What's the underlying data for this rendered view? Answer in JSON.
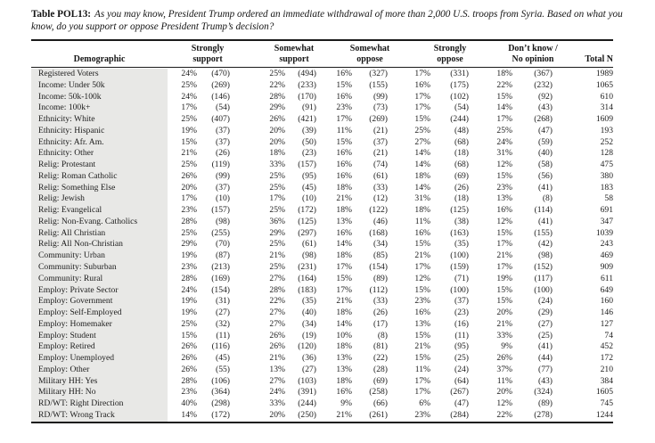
{
  "title": {
    "label": "Table POL13:",
    "line1": "As you may know, President Trump ordered an immediate withdrawal of more than 2,000 U.S. troops from Syria. Based on what you",
    "line2": "know, do you support or oppose President Trump’s decision?"
  },
  "table": {
    "type": "table",
    "demographic_header": "Demographic",
    "total_header": "Total N",
    "groups": [
      {
        "line1": "Strongly",
        "line2": "support"
      },
      {
        "line1": "Somewhat",
        "line2": "support"
      },
      {
        "line1": "Somewhat",
        "line2": "oppose"
      },
      {
        "line1": "Strongly",
        "line2": "oppose"
      },
      {
        "line1": "Don’t know /",
        "line2": "No opinion"
      }
    ],
    "rows": [
      {
        "label": "Registered Voters",
        "values": [
          "24%",
          "(470)",
          "25%",
          "(494)",
          "16%",
          "(327)",
          "17%",
          "(331)",
          "18%",
          "(367)",
          "1989"
        ]
      },
      {
        "label": "Income: Under 50k",
        "values": [
          "25%",
          "(269)",
          "22%",
          "(233)",
          "15%",
          "(155)",
          "16%",
          "(175)",
          "22%",
          "(232)",
          "1065"
        ]
      },
      {
        "label": "Income: 50k-100k",
        "values": [
          "24%",
          "(146)",
          "28%",
          "(170)",
          "16%",
          "(99)",
          "17%",
          "(102)",
          "15%",
          "(92)",
          "610"
        ]
      },
      {
        "label": "Income: 100k+",
        "values": [
          "17%",
          "(54)",
          "29%",
          "(91)",
          "23%",
          "(73)",
          "17%",
          "(54)",
          "14%",
          "(43)",
          "314"
        ]
      },
      {
        "label": "Ethnicity: White",
        "values": [
          "25%",
          "(407)",
          "26%",
          "(421)",
          "17%",
          "(269)",
          "15%",
          "(244)",
          "17%",
          "(268)",
          "1609"
        ]
      },
      {
        "label": "Ethnicity: Hispanic",
        "values": [
          "19%",
          "(37)",
          "20%",
          "(39)",
          "11%",
          "(21)",
          "25%",
          "(48)",
          "25%",
          "(47)",
          "193"
        ]
      },
      {
        "label": "Ethnicity: Afr. Am.",
        "values": [
          "15%",
          "(37)",
          "20%",
          "(50)",
          "15%",
          "(37)",
          "27%",
          "(68)",
          "24%",
          "(59)",
          "252"
        ]
      },
      {
        "label": "Ethnicity: Other",
        "values": [
          "21%",
          "(26)",
          "18%",
          "(23)",
          "16%",
          "(21)",
          "14%",
          "(18)",
          "31%",
          "(40)",
          "128"
        ]
      },
      {
        "label": "Relig: Protestant",
        "values": [
          "25%",
          "(119)",
          "33%",
          "(157)",
          "16%",
          "(74)",
          "14%",
          "(68)",
          "12%",
          "(58)",
          "475"
        ]
      },
      {
        "label": "Relig: Roman Catholic",
        "values": [
          "26%",
          "(99)",
          "25%",
          "(95)",
          "16%",
          "(61)",
          "18%",
          "(69)",
          "15%",
          "(56)",
          "380"
        ]
      },
      {
        "label": "Relig: Something Else",
        "values": [
          "20%",
          "(37)",
          "25%",
          "(45)",
          "18%",
          "(33)",
          "14%",
          "(26)",
          "23%",
          "(41)",
          "183"
        ]
      },
      {
        "label": "Relig: Jewish",
        "values": [
          "17%",
          "(10)",
          "17%",
          "(10)",
          "21%",
          "(12)",
          "31%",
          "(18)",
          "13%",
          "(8)",
          "58"
        ]
      },
      {
        "label": "Relig: Evangelical",
        "values": [
          "23%",
          "(157)",
          "25%",
          "(172)",
          "18%",
          "(122)",
          "18%",
          "(125)",
          "16%",
          "(114)",
          "691"
        ]
      },
      {
        "label": "Relig: Non-Evang. Catholics",
        "values": [
          "28%",
          "(98)",
          "36%",
          "(125)",
          "13%",
          "(46)",
          "11%",
          "(38)",
          "12%",
          "(41)",
          "347"
        ]
      },
      {
        "label": "Relig: All Christian",
        "values": [
          "25%",
          "(255)",
          "29%",
          "(297)",
          "16%",
          "(168)",
          "16%",
          "(163)",
          "15%",
          "(155)",
          "1039"
        ]
      },
      {
        "label": "Relig: All Non-Christian",
        "values": [
          "29%",
          "(70)",
          "25%",
          "(61)",
          "14%",
          "(34)",
          "15%",
          "(35)",
          "17%",
          "(42)",
          "243"
        ]
      },
      {
        "label": "Community: Urban",
        "values": [
          "19%",
          "(87)",
          "21%",
          "(98)",
          "18%",
          "(85)",
          "21%",
          "(100)",
          "21%",
          "(98)",
          "469"
        ]
      },
      {
        "label": "Community: Suburban",
        "values": [
          "23%",
          "(213)",
          "25%",
          "(231)",
          "17%",
          "(154)",
          "17%",
          "(159)",
          "17%",
          "(152)",
          "909"
        ]
      },
      {
        "label": "Community: Rural",
        "values": [
          "28%",
          "(169)",
          "27%",
          "(164)",
          "15%",
          "(89)",
          "12%",
          "(71)",
          "19%",
          "(117)",
          "611"
        ]
      },
      {
        "label": "Employ: Private Sector",
        "values": [
          "24%",
          "(154)",
          "28%",
          "(183)",
          "17%",
          "(112)",
          "15%",
          "(100)",
          "15%",
          "(100)",
          "649"
        ]
      },
      {
        "label": "Employ: Government",
        "values": [
          "19%",
          "(31)",
          "22%",
          "(35)",
          "21%",
          "(33)",
          "23%",
          "(37)",
          "15%",
          "(24)",
          "160"
        ]
      },
      {
        "label": "Employ: Self-Employed",
        "values": [
          "19%",
          "(27)",
          "27%",
          "(40)",
          "18%",
          "(26)",
          "16%",
          "(23)",
          "20%",
          "(29)",
          "146"
        ]
      },
      {
        "label": "Employ: Homemaker",
        "values": [
          "25%",
          "(32)",
          "27%",
          "(34)",
          "14%",
          "(17)",
          "13%",
          "(16)",
          "21%",
          "(27)",
          "127"
        ]
      },
      {
        "label": "Employ: Student",
        "values": [
          "15%",
          "(11)",
          "26%",
          "(19)",
          "10%",
          "(8)",
          "15%",
          "(11)",
          "33%",
          "(25)",
          "74"
        ]
      },
      {
        "label": "Employ: Retired",
        "values": [
          "26%",
          "(116)",
          "26%",
          "(120)",
          "18%",
          "(81)",
          "21%",
          "(95)",
          "9%",
          "(41)",
          "452"
        ]
      },
      {
        "label": "Employ: Unemployed",
        "values": [
          "26%",
          "(45)",
          "21%",
          "(36)",
          "13%",
          "(22)",
          "15%",
          "(25)",
          "26%",
          "(44)",
          "172"
        ]
      },
      {
        "label": "Employ: Other",
        "values": [
          "26%",
          "(55)",
          "13%",
          "(27)",
          "13%",
          "(28)",
          "11%",
          "(24)",
          "37%",
          "(77)",
          "210"
        ]
      },
      {
        "label": "Military HH: Yes",
        "values": [
          "28%",
          "(106)",
          "27%",
          "(103)",
          "18%",
          "(69)",
          "17%",
          "(64)",
          "11%",
          "(43)",
          "384"
        ]
      },
      {
        "label": "Military HH: No",
        "values": [
          "23%",
          "(364)",
          "24%",
          "(391)",
          "16%",
          "(258)",
          "17%",
          "(267)",
          "20%",
          "(324)",
          "1605"
        ]
      },
      {
        "label": "RD/WT: Right Direction",
        "values": [
          "40%",
          "(298)",
          "33%",
          "(244)",
          "9%",
          "(66)",
          "6%",
          "(47)",
          "12%",
          "(89)",
          "745"
        ]
      },
      {
        "label": "RD/WT: Wrong Track",
        "values": [
          "14%",
          "(172)",
          "20%",
          "(250)",
          "21%",
          "(261)",
          "23%",
          "(284)",
          "22%",
          "(278)",
          "1244"
        ]
      }
    ]
  }
}
